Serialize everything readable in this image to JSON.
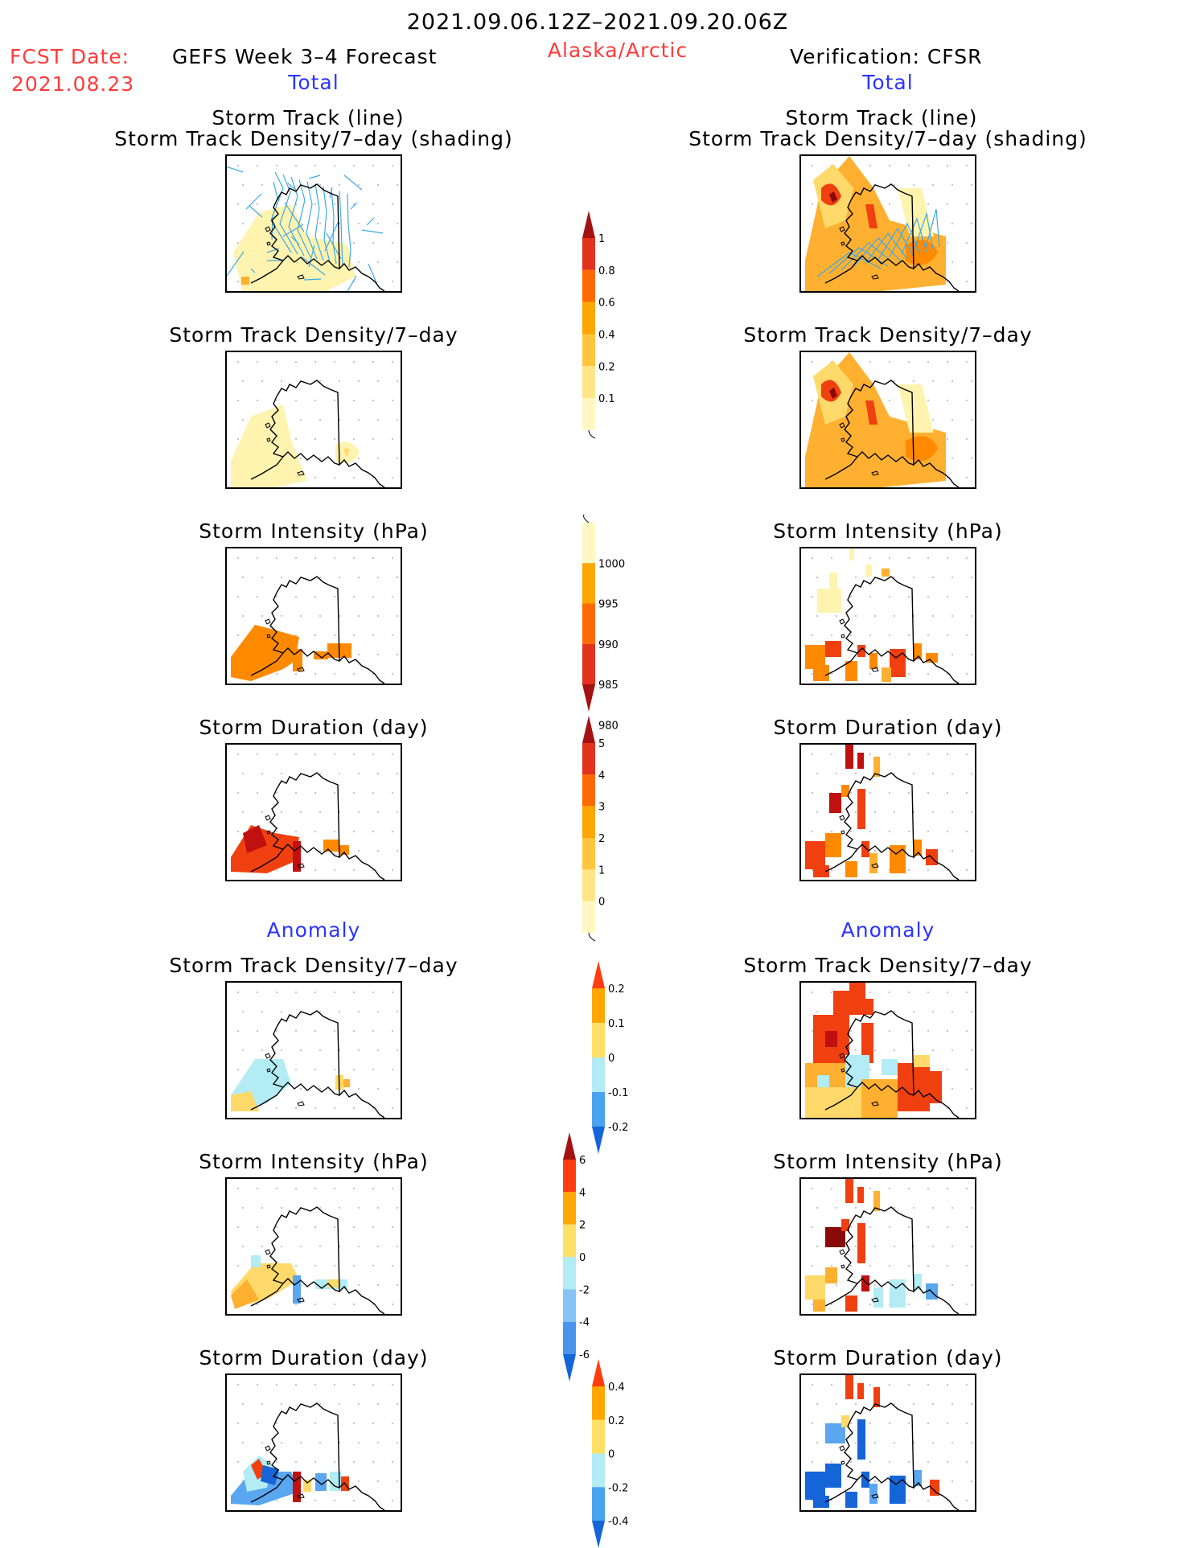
{
  "header": {
    "period": "2021.09.06.12Z–2021.09.20.06Z",
    "fcst_label": "FCST Date:",
    "fcst_date": "2021.08.23",
    "left_title": "GEFS Week 3–4 Forecast",
    "region": "Alaska/Arctic",
    "right_title": "Verification: CFSR"
  },
  "sections": {
    "total": "Total",
    "anomaly": "Anomaly"
  },
  "panel_titles": {
    "track_line": "Storm Track (line)",
    "track_density_shading": "Storm Track Density/7–day (shading)",
    "track_density": "Storm Track Density/7–day",
    "intensity": "Storm Intensity (hPa)",
    "duration": "Storm Duration (day)"
  },
  "colorbars": [
    {
      "id": "track-density-total",
      "labels": [
        "1",
        "0.8",
        "0.6",
        "0.4",
        "0.2",
        "0.1"
      ],
      "colors": [
        "#a51212",
        "#e3321d",
        "#ff6a00",
        "#ffa600",
        "#ffc53d",
        "#ffe588",
        "#fff8c2"
      ]
    },
    {
      "id": "intensity-total",
      "labels": [
        "1000",
        "995",
        "990",
        "985",
        "980"
      ],
      "colors": [
        "#fff8c2",
        "#ffa600",
        "#ff6a00",
        "#e3321d",
        "#a51212"
      ]
    },
    {
      "id": "duration-total",
      "labels": [
        "5",
        "4",
        "3",
        "2",
        "1",
        "0"
      ],
      "colors": [
        "#a51212",
        "#e3321d",
        "#ff6a00",
        "#ffa600",
        "#ffc53d",
        "#ffe588",
        "#fff8c2"
      ]
    },
    {
      "id": "track-density-anom",
      "labels": [
        "0.2",
        "0.1",
        "0",
        "-0.1",
        "-0.2"
      ],
      "colors": [
        "#ff3d10",
        "#ffa600",
        "#ffe066",
        "#b3ecf5",
        "#4aa3f0",
        "#1565d8"
      ]
    },
    {
      "id": "intensity-anom",
      "labels": [
        "6",
        "4",
        "2",
        "0",
        "-2",
        "-4",
        "-6"
      ],
      "colors": [
        "#a51212",
        "#ff3d10",
        "#ffa600",
        "#ffe066",
        "#b3ecf5",
        "#86c4f5",
        "#4a94f0",
        "#1565d8"
      ]
    },
    {
      "id": "duration-anom",
      "labels": [
        "0.4",
        "0.2",
        "0",
        "-0.2",
        "-0.4"
      ],
      "colors": [
        "#ff3d10",
        "#ffa600",
        "#ffe066",
        "#b3ecf5",
        "#4aa3f0",
        "#1565d8"
      ]
    }
  ]
}
